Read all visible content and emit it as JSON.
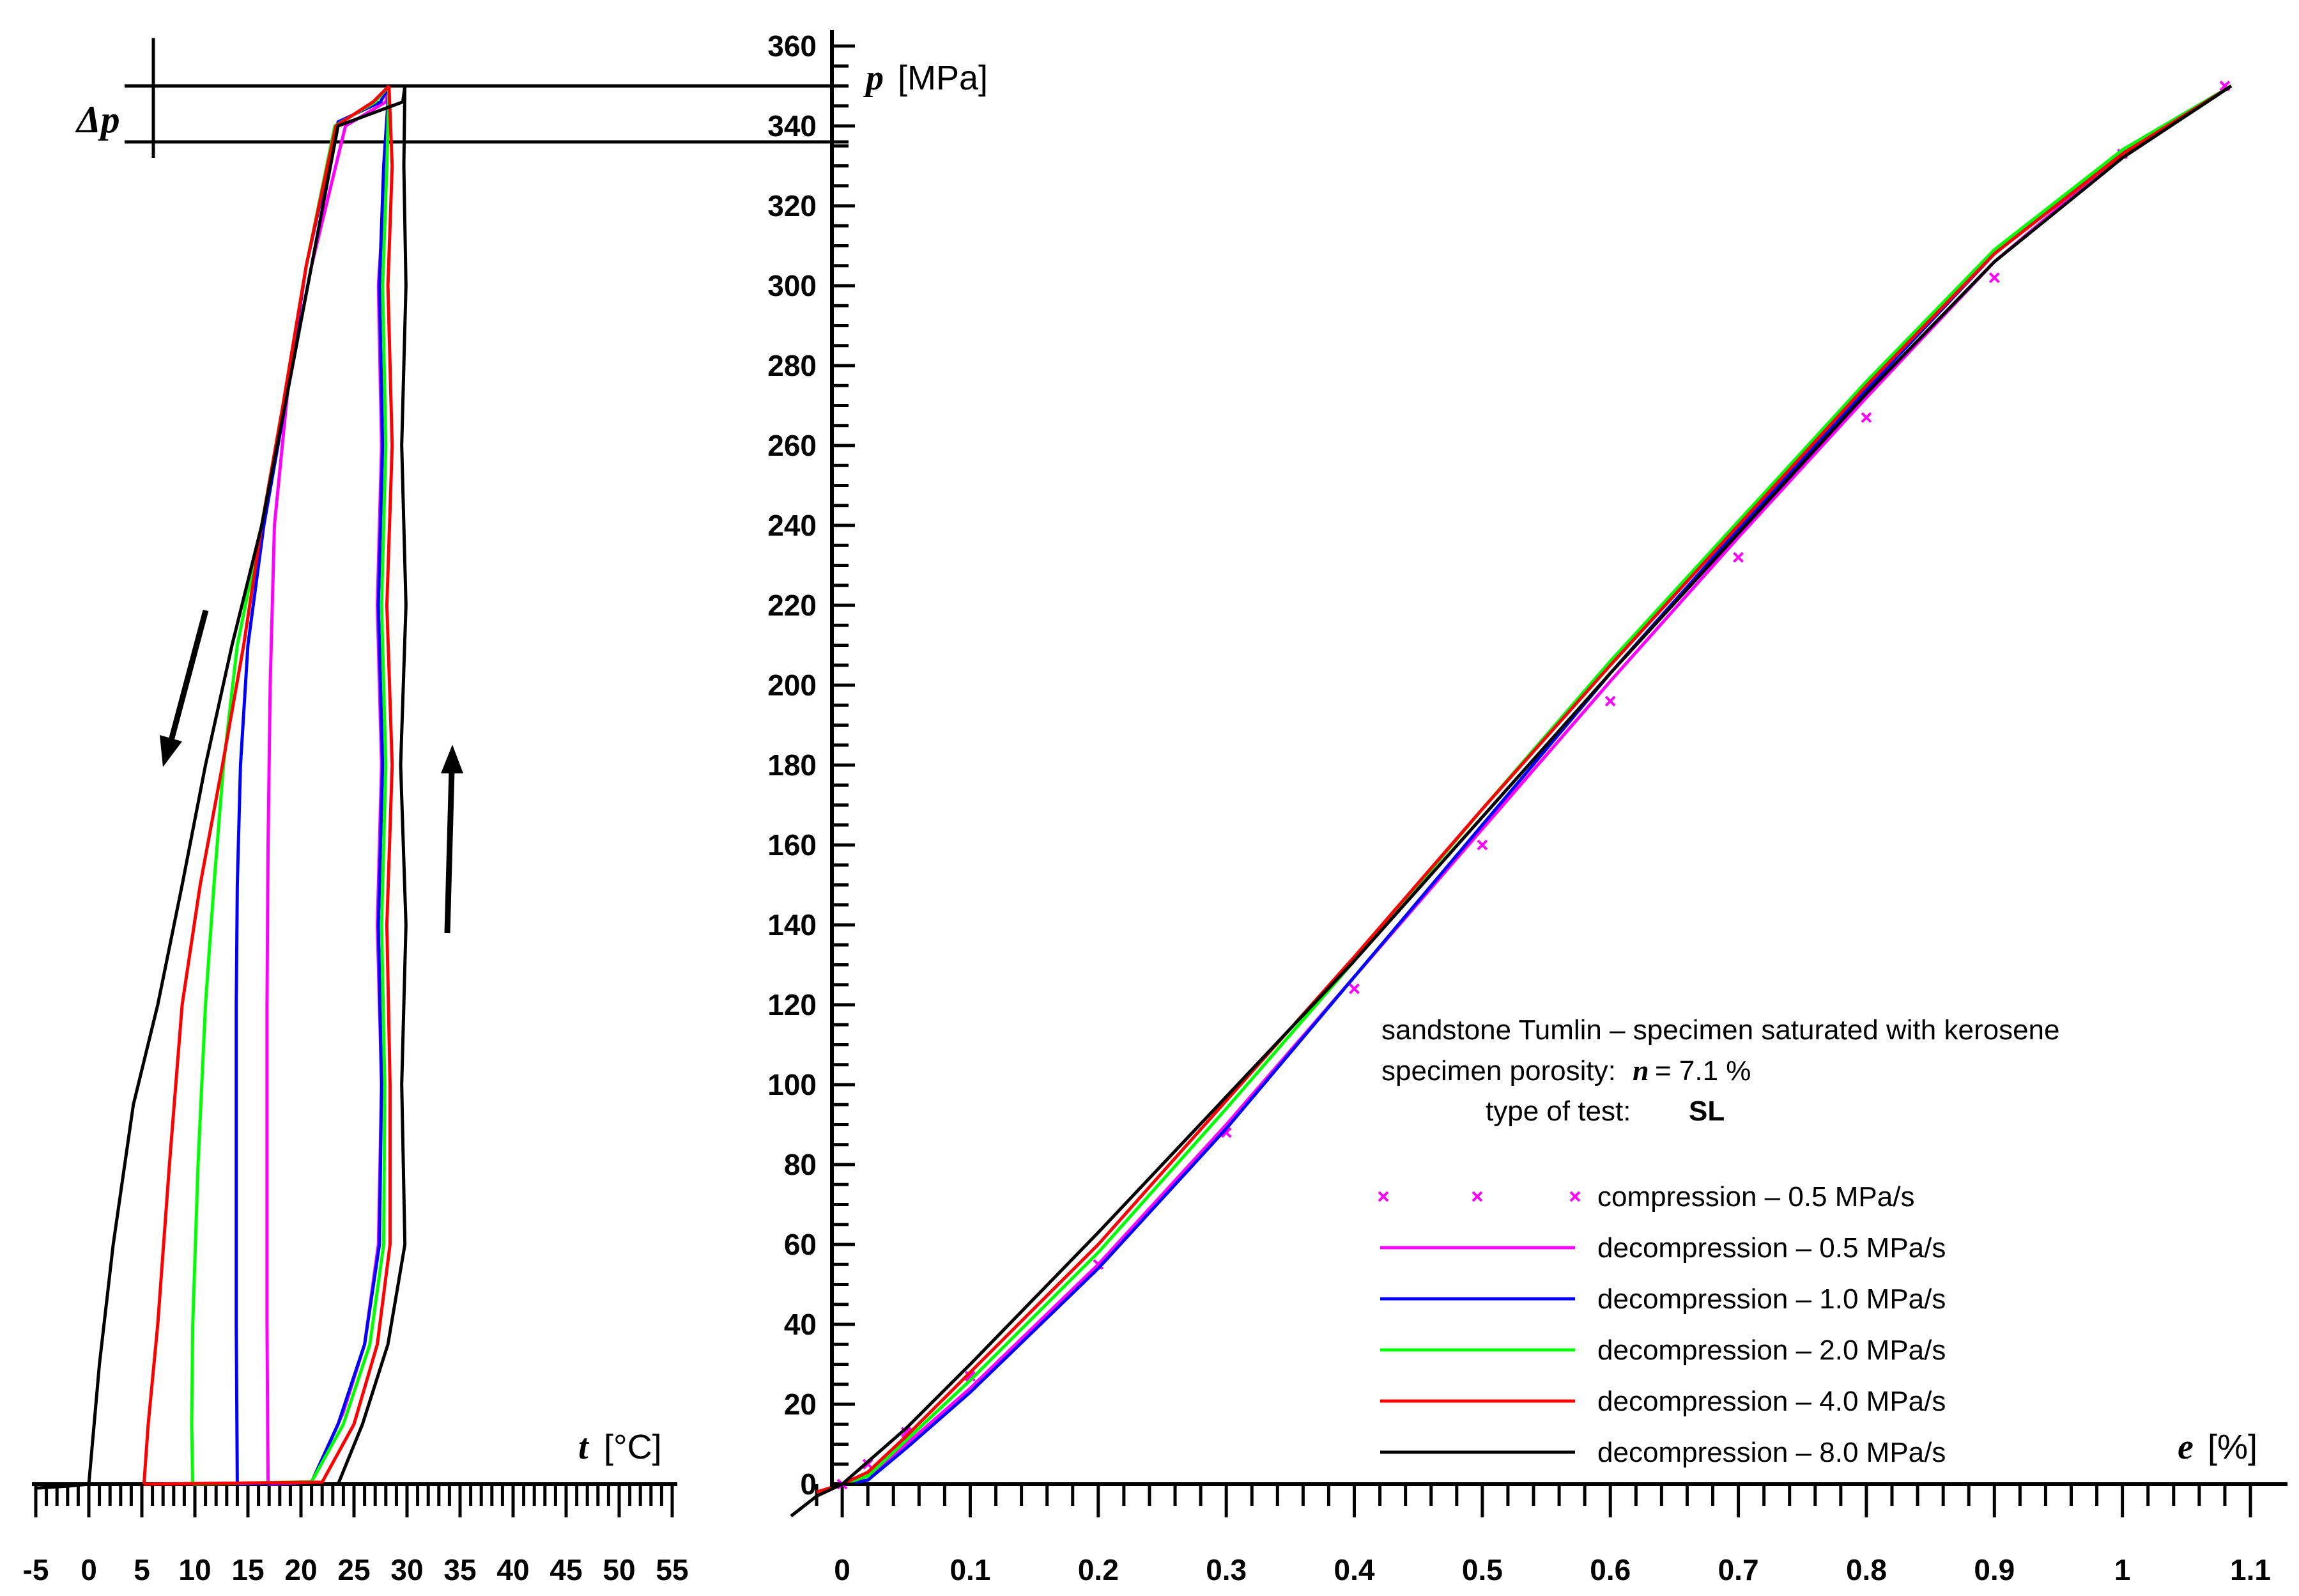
{
  "chart_data": [
    {
      "type": "line",
      "title": "",
      "xlabel_var": "t",
      "xlabel_unit": "[°C]",
      "ylabel_var": "p",
      "ylabel_unit": "[MPa]",
      "xlim": [
        -5,
        55
      ],
      "ylim": [
        0,
        360
      ],
      "x_ticks": [
        -5,
        0,
        5,
        10,
        15,
        20,
        25,
        30,
        35,
        40,
        45,
        50,
        55
      ],
      "y_ticks": [
        0,
        20,
        40,
        60,
        80,
        100,
        120,
        140,
        160,
        180,
        200,
        220,
        240,
        260,
        280,
        300,
        320,
        340,
        360
      ],
      "delta_p_label": "Δp",
      "delta_p_range": [
        336,
        350
      ],
      "series": [
        {
          "name": "decompression – 0.5 MPa/s",
          "color": "#ff00ff",
          "down": [
            [
              28.3,
              350
            ],
            [
              28,
              346
            ],
            [
              24.2,
              340
            ],
            [
              21,
              305
            ],
            [
              18.8,
              275
            ],
            [
              17.5,
              240
            ],
            [
              17.1,
              200
            ],
            [
              16.9,
              160
            ],
            [
              16.8,
              120
            ],
            [
              16.8,
              80
            ],
            [
              16.8,
              40
            ],
            [
              16.9,
              0
            ]
          ],
          "up": [
            [
              16.9,
              0
            ],
            [
              21,
              0.5
            ],
            [
              24,
              18
            ],
            [
              26,
              35
            ],
            [
              27.3,
              60
            ],
            [
              27.6,
              100
            ],
            [
              27.2,
              140
            ],
            [
              27.6,
              180
            ],
            [
              27.2,
              220
            ],
            [
              27.6,
              260
            ],
            [
              27.3,
              300
            ],
            [
              28,
              330
            ],
            [
              28.3,
              350
            ]
          ]
        },
        {
          "name": "decompression – 1.0 MPa/s",
          "color": "#0000ff",
          "down": [
            [
              28.3,
              350
            ],
            [
              27.5,
              346
            ],
            [
              23.5,
              341
            ],
            [
              20.5,
              305
            ],
            [
              18.5,
              270
            ],
            [
              16.5,
              240
            ],
            [
              15,
              210
            ],
            [
              14.3,
              180
            ],
            [
              14,
              150
            ],
            [
              13.9,
              120
            ],
            [
              13.9,
              80
            ],
            [
              13.9,
              40
            ],
            [
              14,
              0
            ]
          ],
          "up": [
            [
              14,
              0
            ],
            [
              21,
              0.5
            ],
            [
              23.5,
              15
            ],
            [
              26,
              35
            ],
            [
              27.4,
              60
            ],
            [
              27.6,
              100
            ],
            [
              27.3,
              140
            ],
            [
              27.7,
              180
            ],
            [
              27.3,
              220
            ],
            [
              27.7,
              260
            ],
            [
              27.4,
              300
            ],
            [
              27.8,
              330
            ],
            [
              28.3,
              350
            ]
          ]
        },
        {
          "name": "decompression – 2.0 MPa/s",
          "color": "#00ff00",
          "down": [
            [
              28.3,
              350
            ],
            [
              27,
              346
            ],
            [
              23.2,
              340
            ],
            [
              20.5,
              305
            ],
            [
              18.3,
              270
            ],
            [
              16.3,
              240
            ],
            [
              14,
              210
            ],
            [
              12.7,
              180
            ],
            [
              11.8,
              150
            ],
            [
              11,
              120
            ],
            [
              10.3,
              80
            ],
            [
              9.8,
              40
            ],
            [
              9.7,
              15
            ],
            [
              9.8,
              0
            ]
          ],
          "up": [
            [
              9.8,
              0
            ],
            [
              21,
              0.6
            ],
            [
              24,
              15
            ],
            [
              26.5,
              35
            ],
            [
              27.8,
              60
            ],
            [
              27.9,
              100
            ],
            [
              27.6,
              140
            ],
            [
              28,
              180
            ],
            [
              27.6,
              220
            ],
            [
              28,
              260
            ],
            [
              27.7,
              300
            ],
            [
              28.1,
              330
            ],
            [
              28.3,
              350
            ]
          ]
        },
        {
          "name": "decompression – 4.0 MPa/s",
          "color": "#ff0000",
          "down": [
            [
              28.3,
              350
            ],
            [
              26.8,
              346
            ],
            [
              23.3,
              340
            ],
            [
              20.5,
              305
            ],
            [
              18.3,
              270
            ],
            [
              16.3,
              240
            ],
            [
              14.6,
              210
            ],
            [
              12.6,
              180
            ],
            [
              10.5,
              150
            ],
            [
              8.8,
              120
            ],
            [
              7.6,
              80
            ],
            [
              6.5,
              40
            ],
            [
              5.6,
              15
            ],
            [
              5.2,
              0
            ]
          ],
          "up": [
            [
              5.2,
              0
            ],
            [
              22,
              0.5
            ],
            [
              25,
              15
            ],
            [
              27.2,
              35
            ],
            [
              28.4,
              60
            ],
            [
              28.4,
              100
            ],
            [
              28.1,
              140
            ],
            [
              28.6,
              180
            ],
            [
              28.1,
              220
            ],
            [
              28.6,
              260
            ],
            [
              28.2,
              300
            ],
            [
              28.6,
              330
            ],
            [
              28.3,
              350
            ]
          ]
        },
        {
          "name": "decompression – 8.0 MPa/s",
          "color": "#000000",
          "down": [
            [
              29.8,
              350
            ],
            [
              29.6,
              346
            ],
            [
              23.5,
              340
            ],
            [
              21,
              305
            ],
            [
              18.5,
              270
            ],
            [
              16.3,
              240
            ],
            [
              13.5,
              210
            ],
            [
              11,
              180
            ],
            [
              8.8,
              150
            ],
            [
              6.5,
              120
            ],
            [
              4.2,
              95
            ],
            [
              2.3,
              60
            ],
            [
              1,
              30
            ],
            [
              0,
              0
            ],
            [
              -2,
              -0.5
            ],
            [
              -5,
              -1
            ]
          ],
          "up": [
            [
              23.5,
              0
            ],
            [
              25.8,
              15
            ],
            [
              28.2,
              35
            ],
            [
              29.8,
              60
            ],
            [
              29.5,
              100
            ],
            [
              29.9,
              140
            ],
            [
              29.4,
              180
            ],
            [
              29.9,
              220
            ],
            [
              29.5,
              260
            ],
            [
              29.9,
              300
            ],
            [
              29.7,
              330
            ],
            [
              29.8,
              350
            ]
          ]
        }
      ]
    },
    {
      "type": "line",
      "title": "",
      "xlabel_var": "e",
      "xlabel_unit": "[%]",
      "xlim": [
        -0.03,
        1.1
      ],
      "ylim": [
        0,
        360
      ],
      "x_ticks": [
        0,
        0.1,
        0.2,
        0.3,
        0.4,
        0.5,
        0.6,
        0.7,
        0.8,
        0.9,
        1,
        1.1
      ],
      "series": [
        {
          "name": "compression – 0.5 MPa/s",
          "color": "#ff00ff",
          "style": "markers",
          "points": [
            [
              0,
              0
            ],
            [
              0.02,
              5
            ],
            [
              0.05,
              13
            ],
            [
              0.1,
              27
            ],
            [
              0.2,
              55
            ],
            [
              0.3,
              88
            ],
            [
              0.4,
              124
            ],
            [
              0.5,
              160
            ],
            [
              0.6,
              196
            ],
            [
              0.7,
              232
            ],
            [
              0.8,
              267
            ],
            [
              0.9,
              302
            ],
            [
              1.0,
              333
            ],
            [
              1.08,
              350
            ]
          ]
        },
        {
          "name": "decompression – 0.5 MPa/s",
          "color": "#ff00ff",
          "style": "line",
          "points": [
            [
              -0.02,
              -2
            ],
            [
              0,
              0
            ],
            [
              0.02,
              2
            ],
            [
              0.05,
              10
            ],
            [
              0.1,
              24
            ],
            [
              0.2,
              55
            ],
            [
              0.3,
              90
            ],
            [
              0.4,
              127
            ],
            [
              0.5,
              164
            ],
            [
              0.6,
              201
            ],
            [
              0.7,
              237
            ],
            [
              0.8,
              272
            ],
            [
              0.9,
              306
            ],
            [
              1.0,
              333
            ],
            [
              1.085,
              350
            ]
          ]
        },
        {
          "name": "decompression – 1.0 MPa/s",
          "color": "#0000ff",
          "style": "line",
          "points": [
            [
              -0.02,
              -2
            ],
            [
              0,
              0
            ],
            [
              0.02,
              1
            ],
            [
              0.05,
              9
            ],
            [
              0.1,
              23
            ],
            [
              0.2,
              54
            ],
            [
              0.3,
              89
            ],
            [
              0.4,
              127
            ],
            [
              0.5,
              165
            ],
            [
              0.6,
              203
            ],
            [
              0.7,
              239
            ],
            [
              0.8,
              274
            ],
            [
              0.9,
              308
            ],
            [
              1.0,
              334
            ],
            [
              1.085,
              350
            ]
          ]
        },
        {
          "name": "decompression – 2.0 MPa/s",
          "color": "#00ff00",
          "style": "line",
          "points": [
            [
              -0.02,
              -2
            ],
            [
              0,
              0
            ],
            [
              0.02,
              2
            ],
            [
              0.05,
              11
            ],
            [
              0.1,
              26
            ],
            [
              0.2,
              58
            ],
            [
              0.3,
              94
            ],
            [
              0.4,
              131
            ],
            [
              0.5,
              169
            ],
            [
              0.6,
              206
            ],
            [
              0.7,
              241
            ],
            [
              0.8,
              276
            ],
            [
              0.9,
              309
            ],
            [
              1.0,
              334
            ],
            [
              1.085,
              350
            ]
          ]
        },
        {
          "name": "decompression – 4.0 MPa/s",
          "color": "#ff0000",
          "style": "line",
          "points": [
            [
              -0.02,
              -2
            ],
            [
              0,
              0
            ],
            [
              0.02,
              3
            ],
            [
              0.05,
              12
            ],
            [
              0.1,
              28
            ],
            [
              0.2,
              60
            ],
            [
              0.3,
              96
            ],
            [
              0.4,
              132
            ],
            [
              0.5,
              169
            ],
            [
              0.6,
              205
            ],
            [
              0.7,
              240
            ],
            [
              0.8,
              275
            ],
            [
              0.9,
              308
            ],
            [
              1.0,
              333
            ],
            [
              1.085,
              350
            ]
          ]
        },
        {
          "name": "decompression – 8.0 MPa/s",
          "color": "#000000",
          "style": "line",
          "points": [
            [
              -0.04,
              -8
            ],
            [
              -0.02,
              -3
            ],
            [
              0,
              0
            ],
            [
              0.05,
              14
            ],
            [
              0.1,
              30
            ],
            [
              0.2,
              63
            ],
            [
              0.3,
              97
            ],
            [
              0.4,
              131
            ],
            [
              0.5,
              167
            ],
            [
              0.6,
              203
            ],
            [
              0.7,
              238
            ],
            [
              0.8,
              273
            ],
            [
              0.9,
              306
            ],
            [
              1.0,
              332
            ],
            [
              1.085,
              350
            ]
          ]
        }
      ]
    }
  ],
  "annotation": {
    "line1": "sandstone Tumlin – specimen saturated with kerosene",
    "line2_label": "specimen porosity:",
    "line2_var": "n",
    "line2_value": "= 7.1 %",
    "line3_label": "type of test:",
    "line3_value": "SL"
  },
  "legend": [
    {
      "label": "compression – 0.5 MPa/s",
      "color": "#ff00ff",
      "style": "markers"
    },
    {
      "label": "decompression – 0.5 MPa/s",
      "color": "#ff00ff",
      "style": "line"
    },
    {
      "label": "decompression – 1.0 MPa/s",
      "color": "#0000ff",
      "style": "line"
    },
    {
      "label": "decompression – 2.0 MPa/s",
      "color": "#00ff00",
      "style": "line"
    },
    {
      "label": "decompression – 4.0 MPa/s",
      "color": "#ff0000",
      "style": "line"
    },
    {
      "label": "decompression – 8.0 MPa/s",
      "color": "#000000",
      "style": "line"
    }
  ]
}
